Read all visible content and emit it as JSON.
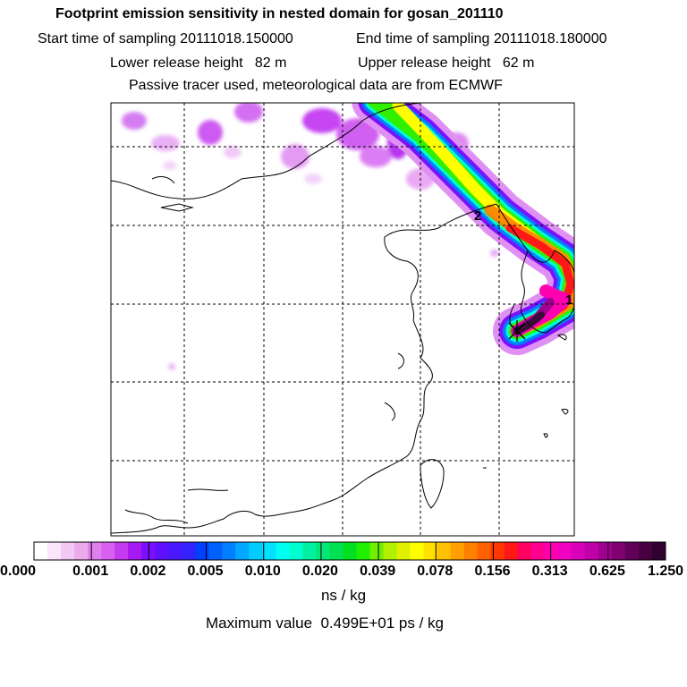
{
  "header": {
    "title": "Footprint emission sensitivity in nested domain for gosan_201110",
    "start_time": "Start time of sampling 20111018.150000",
    "end_time": "End time of sampling 20111018.180000",
    "lower_release": "Lower release height   82 m",
    "upper_release": "Upper release height   62 m",
    "tracer_info": "Passive tracer used, meteorological data are from ECMWF"
  },
  "map": {
    "labels": [
      "2",
      "1"
    ],
    "colors": {
      "coast": "#000000",
      "grid": "#000000",
      "plume_core": "#3a0a3a"
    }
  },
  "colorbar": {
    "ticks": [
      "0.000",
      "0.001",
      "0.002",
      "0.005",
      "0.010",
      "0.020",
      "0.039",
      "0.078",
      "0.156",
      "0.313",
      "0.625",
      "1.250"
    ],
    "colors": [
      "#ffffff",
      "#fbe5fb",
      "#f4c8f4",
      "#ebaaeb",
      "#e080ef",
      "#d860f0",
      "#c43af0",
      "#a818f0",
      "#7a10ff",
      "#6010ff",
      "#4a18ff",
      "#3422ff",
      "#0040ff",
      "#0060ff",
      "#0080ff",
      "#00a8ff",
      "#00ccff",
      "#00e0ff",
      "#00fff0",
      "#00ffd0",
      "#00f0a0",
      "#00e878",
      "#00e050",
      "#00e020",
      "#20f000",
      "#70f000",
      "#b0f000",
      "#e0f000",
      "#ffff00",
      "#ffe000",
      "#ffc000",
      "#ffa000",
      "#ff8000",
      "#ff6000",
      "#ff3800",
      "#ff1818",
      "#ff0060",
      "#ff0090",
      "#ff00b0",
      "#f000c0",
      "#d800b8",
      "#c000a8",
      "#a00090",
      "#800070",
      "#600058",
      "#480040",
      "#300030"
    ],
    "units": "ns / kg",
    "max_value": "Maximum value  0.499E+01 ps / kg"
  }
}
